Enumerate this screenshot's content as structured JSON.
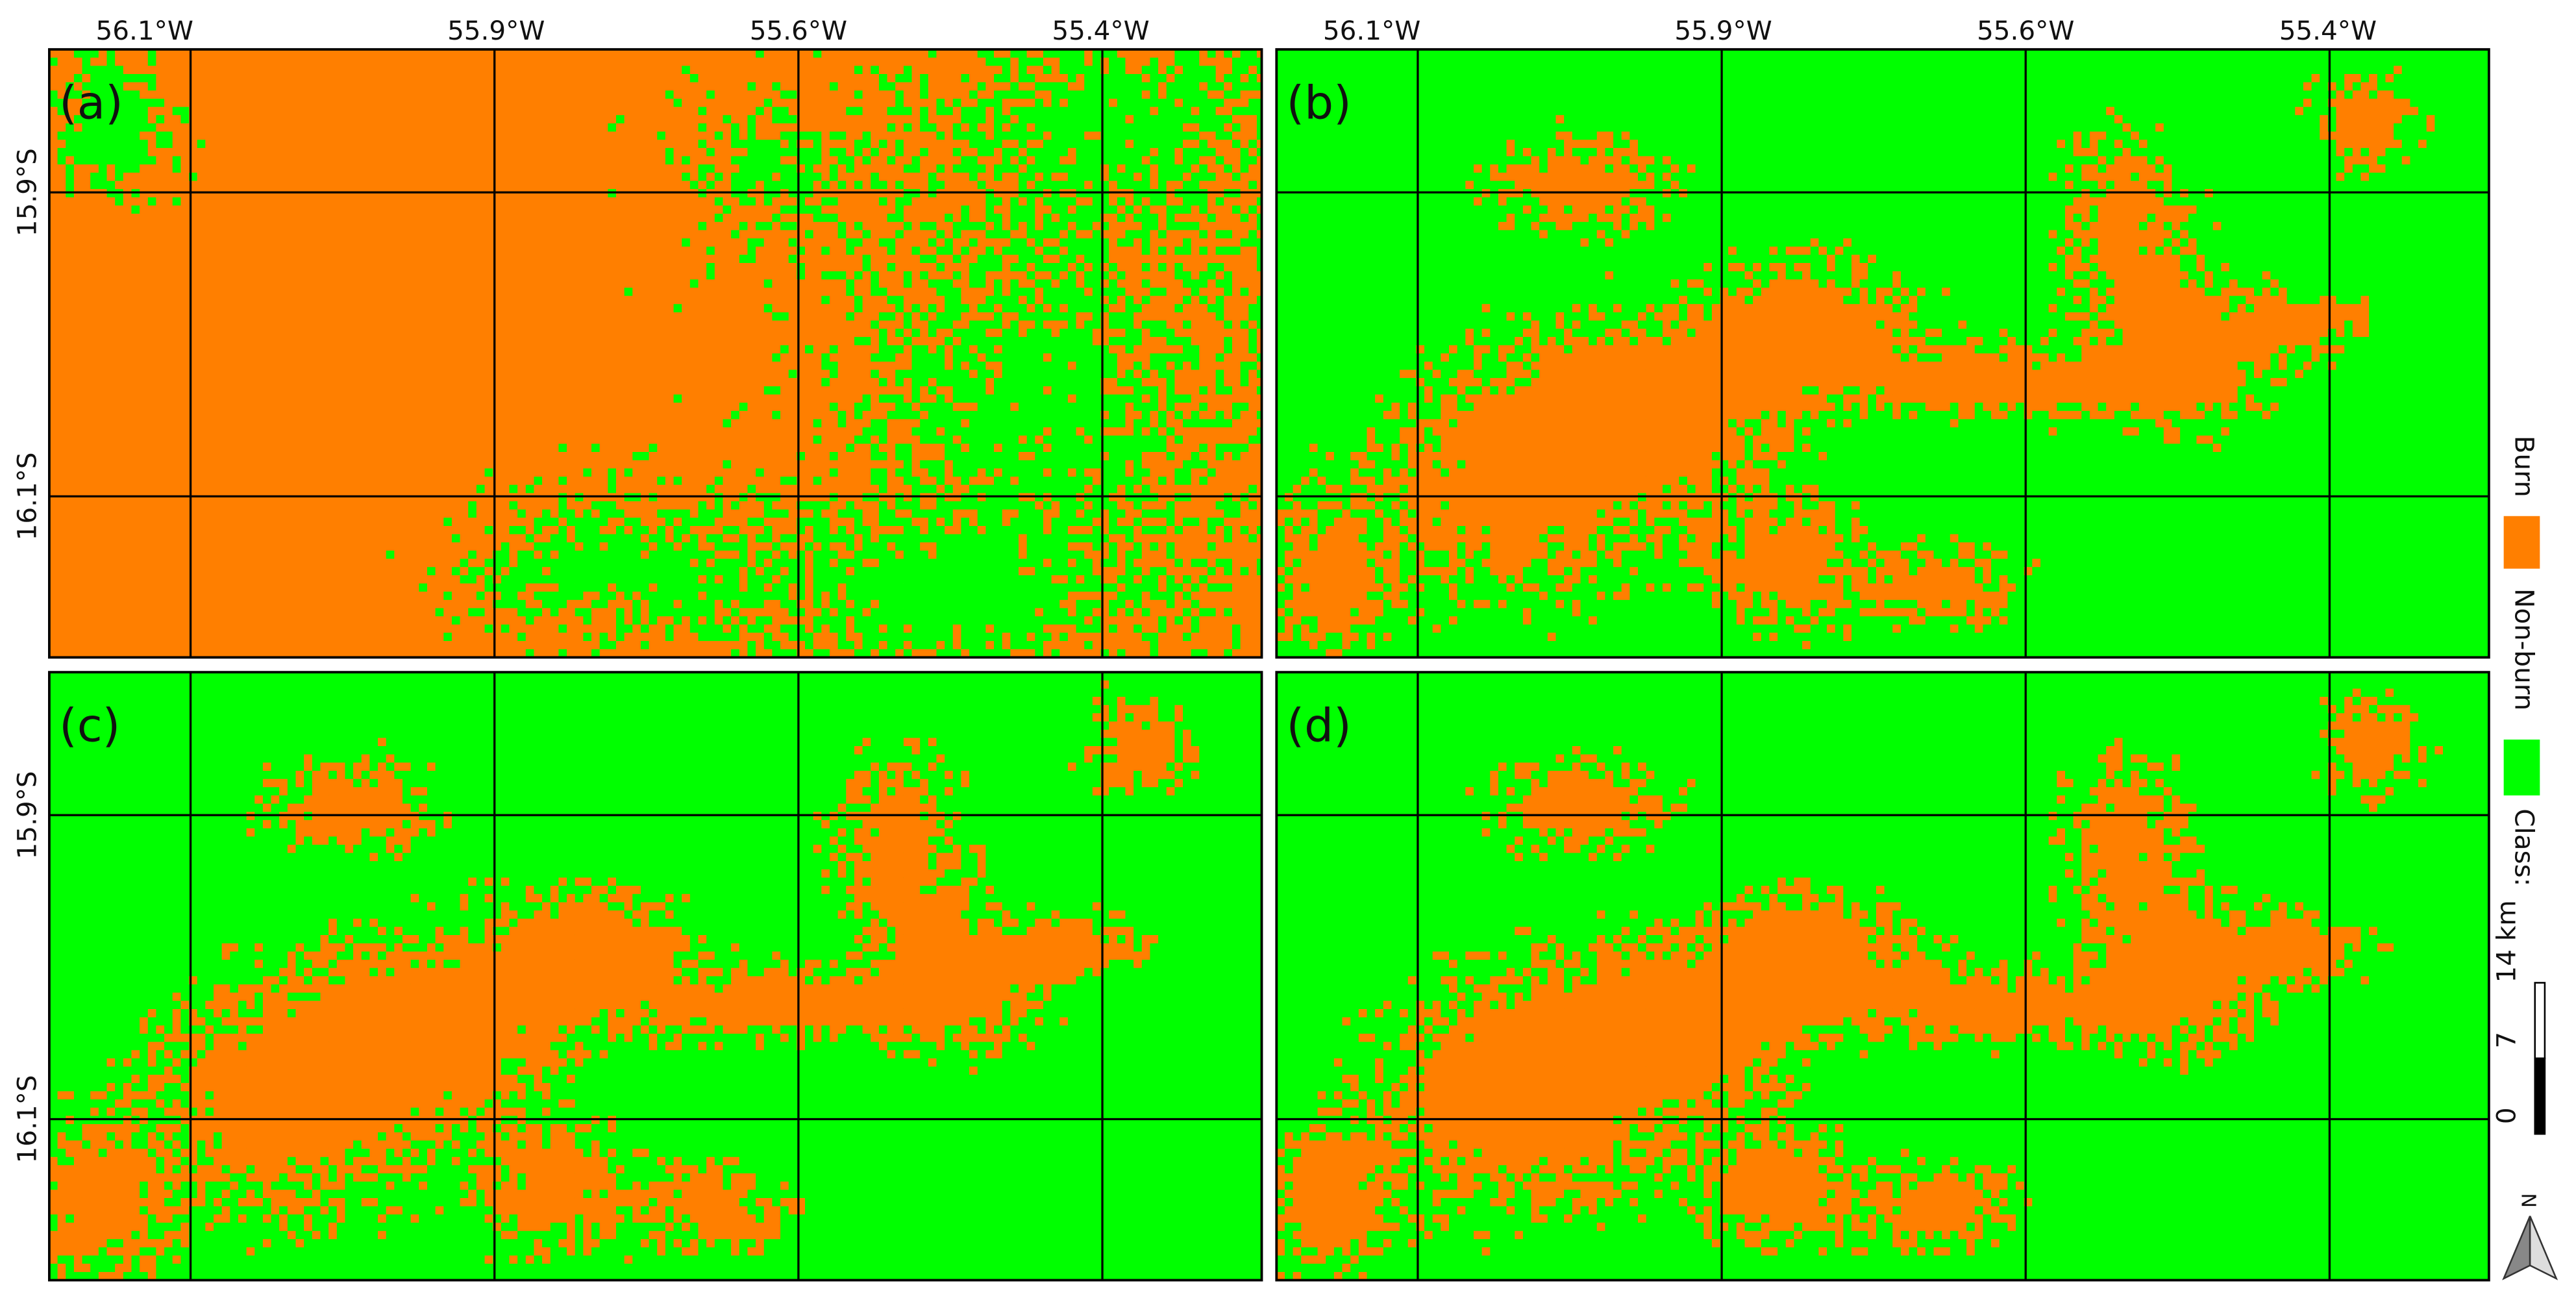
{
  "panels": [
    {
      "label": "(a)"
    },
    {
      "label": "(b)"
    },
    {
      "label": "(c)"
    },
    {
      "label": "(d)"
    }
  ],
  "longitude_labels": [
    "56.1°W",
    "55.9°W",
    "55.6°W",
    "55.4°W"
  ],
  "latitude_labels": [
    "15.9°S",
    "16.1°S"
  ],
  "legend": {
    "title": "Class:",
    "items": [
      "Non-burn",
      "Burn"
    ]
  },
  "scale_bar": {
    "labels": [
      "0",
      "7",
      "14 km"
    ]
  },
  "north_arrow": "N"
}
